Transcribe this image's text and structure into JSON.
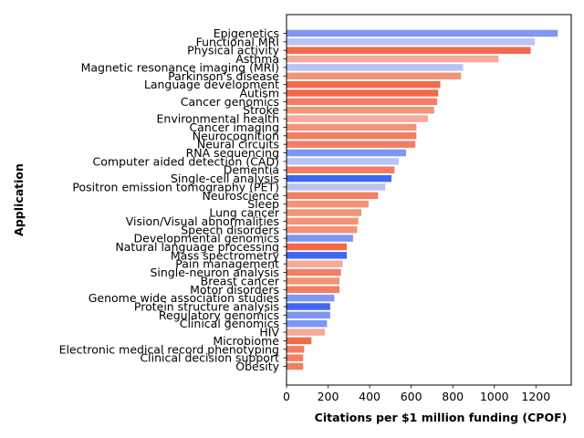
{
  "chart_data": {
    "type": "bar",
    "orientation": "horizontal",
    "title": "",
    "xlabel": "Citations per $1 million funding (CPOF)",
    "ylabel": "Application",
    "xlim": [
      0,
      1370
    ],
    "xticks": [
      0,
      200,
      400,
      600,
      800,
      1000,
      1200
    ],
    "grid": false,
    "legend": "none",
    "categories": [
      "Epigenetics",
      "Functional MRI",
      "Physical activity",
      "Asthma",
      "Magnetic resonance imaging (MRI)",
      "Parkinson's disease",
      "Language development",
      "Autism",
      "Cancer genomics",
      "Stroke",
      "Environmental health",
      "Cancer imaging",
      "Neurocognition",
      "Neural circuits",
      "RNA sequencing",
      "Computer aided detection (CAD)",
      "Dementia",
      "Single-cell analysis",
      "Positron emission tomography (PET)",
      "Neuroscience",
      "Sleep",
      "Lung cancer",
      "Vision/Visual abnormalities",
      "Speech disorders",
      "Developmental genomics",
      "Natural language processing",
      "Mass spectrometry",
      "Pain management",
      "Single-neuron analysis",
      "Breast cancer",
      "Motor disorders",
      "Genome wide association studies",
      "Protein structure analysis",
      "Regulatory genomics",
      "Clinical genomics",
      "HIV",
      "Microbiome",
      "Electronic medical record phenotyping",
      "Clinical decision support",
      "Obesity"
    ],
    "values": [
      1305,
      1195,
      1175,
      1020,
      850,
      840,
      740,
      730,
      725,
      710,
      680,
      625,
      625,
      620,
      575,
      540,
      520,
      505,
      475,
      440,
      395,
      360,
      345,
      340,
      320,
      290,
      290,
      270,
      262,
      255,
      255,
      230,
      210,
      210,
      195,
      185,
      120,
      85,
      80,
      80
    ],
    "colors": [
      "#7f96f2",
      "#b9c4f2",
      "#f4694a",
      "#f5aa9c",
      "#b9c4f2",
      "#f29478",
      "#f4694a",
      "#f4694a",
      "#f27e63",
      "#f29478",
      "#f5aa9c",
      "#f29478",
      "#f27e63",
      "#f27e63",
      "#7f96f2",
      "#b9c4f2",
      "#f27e63",
      "#3f67f2",
      "#b9c4f2",
      "#f27e63",
      "#f29478",
      "#f29478",
      "#f29478",
      "#f29478",
      "#7f96f2",
      "#f4694a",
      "#3f67f2",
      "#f5aa9c",
      "#f27e63",
      "#f29478",
      "#f27e63",
      "#7f96f2",
      "#3f67f2",
      "#7f96f2",
      "#7f96f2",
      "#f5aa9c",
      "#f4694a",
      "#f27e63",
      "#f27e63",
      "#f27e63"
    ]
  }
}
